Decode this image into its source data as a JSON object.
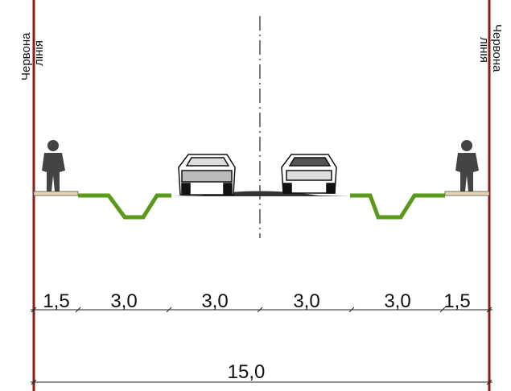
{
  "red_line_left": {
    "line1": "Червона",
    "line2": "лінія"
  },
  "red_line_right": {
    "line1": "Червона",
    "line2": "лінія"
  },
  "dimensions": [
    "1,5",
    "3,0",
    "3,0",
    "3,0",
    "3,0",
    "1,5"
  ],
  "total": "15,0"
}
